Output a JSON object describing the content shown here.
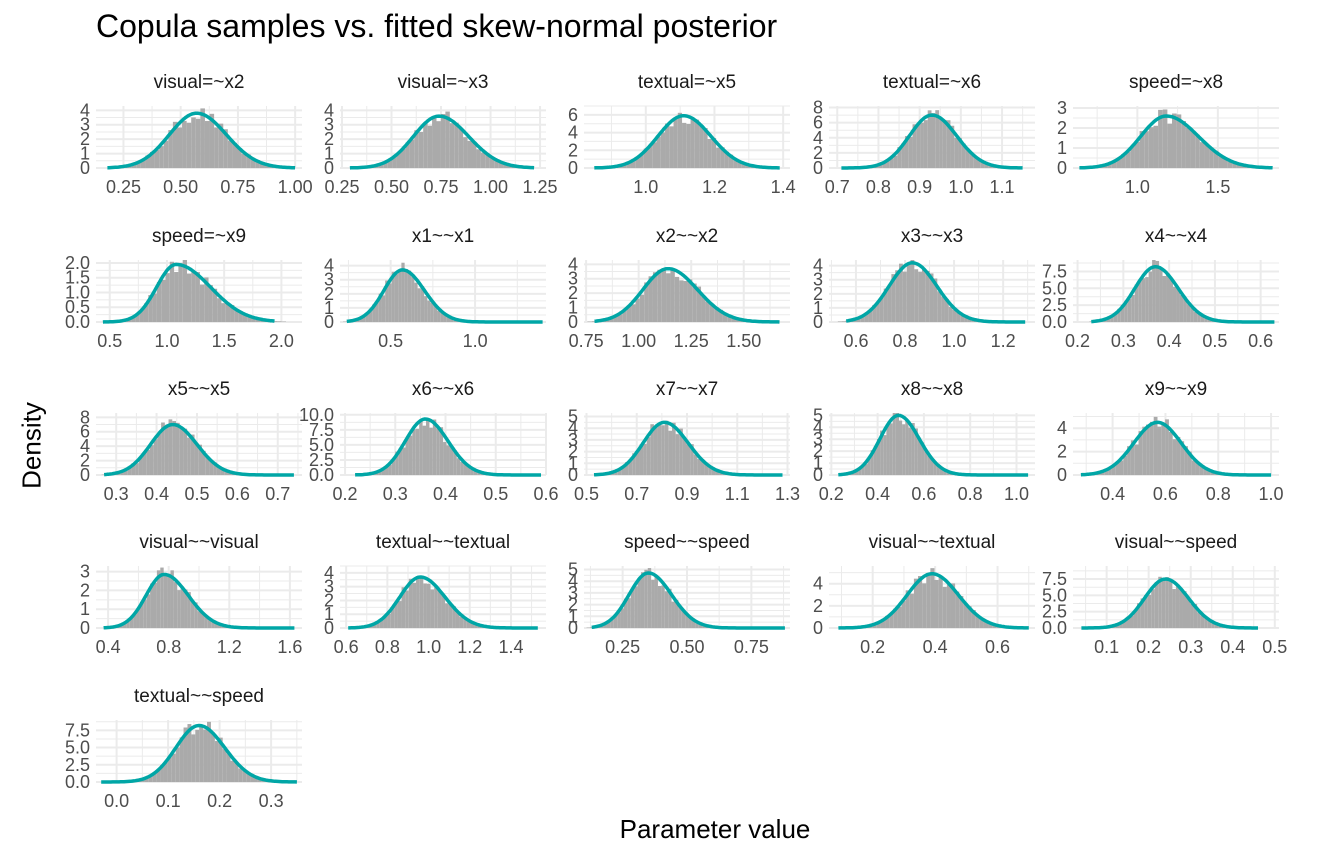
{
  "chart_data": {
    "type": "faceted-histogram-density",
    "title": "Copula samples vs. fitted skew-normal posterior",
    "xlabel": "Parameter value",
    "ylabel": "Density",
    "grid": true,
    "colors": {
      "histogram": "#aaaaaa",
      "curve": "#00a6a6",
      "grid": "#ebebeb",
      "tick_label": "#4d4d4d",
      "strip_text": "#1a1a1a"
    },
    "panels": [
      {
        "title": "visual=~x2",
        "xlim": [
          0.13,
          1.03
        ],
        "xticks": [
          0.25,
          0.5,
          0.75,
          1.0
        ],
        "xtick_labels": [
          "0.25",
          "0.50",
          "0.75",
          "1.00"
        ],
        "ymax": 4.3,
        "yticks": [
          0,
          1,
          2,
          3,
          4
        ],
        "ytick_labels": [
          "0",
          "1",
          "2",
          "3",
          "4"
        ],
        "mode": 0.57,
        "scale_left": 0.12,
        "scale_right": 0.13,
        "peak": 3.8,
        "support": [
          0.18,
          1.0
        ]
      },
      {
        "title": "visual=~x3",
        "xlim": [
          0.24,
          1.28
        ],
        "xticks": [
          0.25,
          0.5,
          0.75,
          1.0,
          1.25
        ],
        "xtick_labels": [
          "0.25",
          "0.50",
          "0.75",
          "1.00",
          "1.25"
        ],
        "ymax": 4.3,
        "yticks": [
          0,
          1,
          2,
          3,
          4
        ],
        "ytick_labels": [
          "0",
          "1",
          "2",
          "3",
          "4"
        ],
        "mode": 0.74,
        "scale_left": 0.13,
        "scale_right": 0.15,
        "peak": 3.6,
        "support": [
          0.29,
          1.22
        ]
      },
      {
        "title": "textual=~x5",
        "xlim": [
          0.82,
          1.42
        ],
        "xticks": [
          1.0,
          1.2,
          1.4
        ],
        "xtick_labels": [
          "1.0",
          "1.2",
          "1.4"
        ],
        "ymax": 7.0,
        "yticks": [
          0,
          2,
          4,
          6
        ],
        "ytick_labels": [
          "0",
          "2",
          "4",
          "6"
        ],
        "mode": 1.11,
        "scale_left": 0.075,
        "scale_right": 0.08,
        "peak": 5.9,
        "support": [
          0.85,
          1.39
        ]
      },
      {
        "title": "textual=~x6",
        "xlim": [
          0.68,
          1.18
        ],
        "xticks": [
          0.7,
          0.8,
          0.9,
          1.0,
          1.1
        ],
        "xtick_labels": [
          "0.7",
          "0.8",
          "0.9",
          "1.0",
          "1.1"
        ],
        "ymax": 8.2,
        "yticks": [
          0,
          2,
          4,
          6,
          8
        ],
        "ytick_labels": [
          "0",
          "2",
          "4",
          "6",
          "8"
        ],
        "mode": 0.93,
        "scale_left": 0.055,
        "scale_right": 0.06,
        "peak": 7.0,
        "support": [
          0.71,
          1.15
        ]
      },
      {
        "title": "speed=~x8",
        "xlim": [
          0.6,
          1.88
        ],
        "xticks": [
          1.0,
          1.5
        ],
        "xtick_labels": [
          "1.0",
          "1.5"
        ],
        "ymax": 3.1,
        "yticks": [
          0,
          1,
          2,
          3
        ],
        "ytick_labels": [
          "0",
          "1",
          "2",
          "3"
        ],
        "mode": 1.18,
        "scale_left": 0.16,
        "scale_right": 0.2,
        "peak": 2.6,
        "support": [
          0.64,
          1.84
        ]
      },
      {
        "title": "speed=~x9",
        "xlim": [
          0.38,
          2.18
        ],
        "xticks": [
          0.5,
          1.0,
          1.5,
          2.0
        ],
        "xtick_labels": [
          "0.5",
          "1.0",
          "1.5",
          "2.0"
        ],
        "ymax": 2.1,
        "yticks": [
          0,
          0.5,
          1.0,
          1.5,
          2.0
        ],
        "ytick_labels": [
          "0.0",
          "0.5",
          "1.0",
          "1.5",
          "2.0"
        ],
        "mode": 1.08,
        "scale_left": 0.17,
        "scale_right": 0.3,
        "peak": 1.95,
        "support": [
          0.44,
          1.94
        ]
      },
      {
        "title": "x1~~x1",
        "xlim": [
          0.2,
          1.42
        ],
        "xticks": [
          0.5,
          1.0
        ],
        "xtick_labels": [
          "0.5",
          "1.0"
        ],
        "ymax": 4.4,
        "yticks": [
          0,
          1,
          2,
          3,
          4
        ],
        "ytick_labels": [
          "0",
          "1",
          "2",
          "3",
          "4"
        ],
        "mode": 0.57,
        "scale_left": 0.11,
        "scale_right": 0.13,
        "peak": 3.7,
        "support": [
          0.24,
          1.4
        ]
      },
      {
        "title": "x2~~x2",
        "xlim": [
          0.74,
          1.72
        ],
        "xticks": [
          0.75,
          1.0,
          1.25,
          1.5
        ],
        "xtick_labels": [
          "0.75",
          "1.00",
          "1.25",
          "1.50"
        ],
        "ymax": 4.3,
        "yticks": [
          0,
          1,
          2,
          3,
          4
        ],
        "ytick_labels": [
          "0",
          "1",
          "2",
          "3",
          "4"
        ],
        "mode": 1.14,
        "scale_left": 0.12,
        "scale_right": 0.14,
        "peak": 3.7,
        "support": [
          0.79,
          1.67
        ]
      },
      {
        "title": "x3~~x3",
        "xlim": [
          0.49,
          1.33
        ],
        "xticks": [
          0.6,
          0.8,
          1.0,
          1.2
        ],
        "xtick_labels": [
          "0.6",
          "0.8",
          "1.0",
          "1.2"
        ],
        "ymax": 4.4,
        "yticks": [
          0,
          1,
          2,
          3,
          4
        ],
        "ytick_labels": [
          "0",
          "1",
          "2",
          "3",
          "4"
        ],
        "mode": 0.83,
        "scale_left": 0.095,
        "scale_right": 0.1,
        "peak": 4.2,
        "support": [
          0.56,
          1.29
        ]
      },
      {
        "title": "x4~~x4",
        "xlim": [
          0.19,
          0.64
        ],
        "xticks": [
          0.2,
          0.3,
          0.4,
          0.5,
          0.6
        ],
        "xtick_labels": [
          "0.2",
          "0.3",
          "0.4",
          "0.5",
          "0.6"
        ],
        "ymax": 9.2,
        "yticks": [
          0,
          2.5,
          5.0,
          7.5
        ],
        "ytick_labels": [
          "0.0",
          "2.5",
          "5.0",
          "7.5"
        ],
        "mode": 0.37,
        "scale_left": 0.045,
        "scale_right": 0.05,
        "peak": 8.2,
        "support": [
          0.23,
          0.63
        ]
      },
      {
        "title": "x5~~x5",
        "xlim": [
          0.25,
          0.76
        ],
        "xticks": [
          0.3,
          0.4,
          0.5,
          0.6,
          0.7
        ],
        "xtick_labels": [
          "0.3",
          "0.4",
          "0.5",
          "0.6",
          "0.7"
        ],
        "ymax": 8.6,
        "yticks": [
          0,
          2,
          4,
          6,
          8
        ],
        "ytick_labels": [
          "0",
          "2",
          "4",
          "6",
          "8"
        ],
        "mode": 0.44,
        "scale_left": 0.055,
        "scale_right": 0.06,
        "peak": 7.0,
        "support": [
          0.27,
          0.74
        ]
      },
      {
        "title": "x6~~x6",
        "xlim": [
          0.19,
          0.6
        ],
        "xticks": [
          0.2,
          0.3,
          0.4,
          0.5,
          0.6
        ],
        "xtick_labels": [
          "0.2",
          "0.3",
          "0.4",
          "0.5",
          "0.6"
        ],
        "ymax": 10.3,
        "yticks": [
          0,
          2.5,
          5.0,
          7.5,
          10.0
        ],
        "ytick_labels": [
          "0.0",
          "2.5",
          "5.0",
          "7.5",
          "10.0"
        ],
        "mode": 0.36,
        "scale_left": 0.04,
        "scale_right": 0.045,
        "peak": 9.3,
        "support": [
          0.22,
          0.59
        ]
      },
      {
        "title": "x7~~x7",
        "xlim": [
          0.49,
          1.31
        ],
        "xticks": [
          0.5,
          0.7,
          0.9,
          1.1,
          1.3
        ],
        "xtick_labels": [
          "0.5",
          "0.7",
          "0.9",
          "1.1",
          "1.3"
        ],
        "ymax": 5.3,
        "yticks": [
          0,
          1,
          2,
          3,
          4,
          5
        ],
        "ytick_labels": [
          "0",
          "1",
          "2",
          "3",
          "4",
          "5"
        ],
        "mode": 0.81,
        "scale_left": 0.085,
        "scale_right": 0.095,
        "peak": 4.5,
        "support": [
          0.53,
          1.28
        ]
      },
      {
        "title": "x8~~x8",
        "xlim": [
          0.19,
          1.08
        ],
        "xticks": [
          0.2,
          0.4,
          0.6,
          0.8,
          1.0
        ],
        "xtick_labels": [
          "0.2",
          "0.4",
          "0.6",
          "0.8",
          "1.0"
        ],
        "ymax": 5.2,
        "yticks": [
          0,
          1,
          2,
          3,
          4,
          5
        ],
        "ytick_labels": [
          "0",
          "1",
          "2",
          "3",
          "4",
          "5"
        ],
        "mode": 0.49,
        "scale_left": 0.08,
        "scale_right": 0.09,
        "peak": 5.0,
        "support": [
          0.23,
          1.05
        ]
      },
      {
        "title": "x9~~x9",
        "xlim": [
          0.25,
          1.03
        ],
        "xticks": [
          0.4,
          0.6,
          0.8,
          1.0
        ],
        "xtick_labels": [
          "0.4",
          "0.6",
          "0.8",
          "1.0"
        ],
        "ymax": 5.3,
        "yticks": [
          0,
          2,
          4
        ],
        "ytick_labels": [
          "0",
          "2",
          "4"
        ],
        "mode": 0.57,
        "scale_left": 0.09,
        "scale_right": 0.09,
        "peak": 4.5,
        "support": [
          0.28,
          1.0
        ]
      },
      {
        "title": "visual~~visual",
        "xlim": [
          0.32,
          1.68
        ],
        "xticks": [
          0.4,
          0.8,
          1.2,
          1.6
        ],
        "xtick_labels": [
          "0.4",
          "0.8",
          "1.2",
          "1.6"
        ],
        "ymax": 3.3,
        "yticks": [
          0,
          1,
          2,
          3
        ],
        "ytick_labels": [
          "0",
          "1",
          "2",
          "3"
        ],
        "mode": 0.77,
        "scale_left": 0.12,
        "scale_right": 0.16,
        "peak": 2.85,
        "support": [
          0.37,
          1.63
        ]
      },
      {
        "title": "textual~~textual",
        "xlim": [
          0.57,
          1.57
        ],
        "xticks": [
          0.6,
          0.8,
          1.0,
          1.2,
          1.4
        ],
        "xtick_labels": [
          "0.6",
          "0.8",
          "1.0",
          "1.2",
          "1.4"
        ],
        "ymax": 4.5,
        "yticks": [
          0,
          1,
          2,
          3,
          4
        ],
        "ytick_labels": [
          "0",
          "1",
          "2",
          "3",
          "4"
        ],
        "mode": 0.96,
        "scale_left": 0.1,
        "scale_right": 0.12,
        "peak": 3.7,
        "support": [
          0.61,
          1.53
        ]
      },
      {
        "title": "speed~~speed",
        "xlim": [
          0.1,
          0.9
        ],
        "xticks": [
          0.25,
          0.5,
          0.75
        ],
        "xtick_labels": [
          "0.25",
          "0.50",
          "0.75"
        ],
        "ymax": 5.3,
        "yticks": [
          0,
          1,
          2,
          3,
          4,
          5
        ],
        "ytick_labels": [
          "0",
          "1",
          "2",
          "3",
          "4",
          "5"
        ],
        "mode": 0.35,
        "scale_left": 0.075,
        "scale_right": 0.09,
        "peak": 4.7,
        "support": [
          0.13,
          0.88
        ]
      },
      {
        "title": "visual~~textual",
        "xlim": [
          0.06,
          0.72
        ],
        "xticks": [
          0.2,
          0.4,
          0.6
        ],
        "xtick_labels": [
          "0.2",
          "0.4",
          "0.6"
        ],
        "ymax": 5.6,
        "yticks": [
          0,
          2,
          4
        ],
        "ytick_labels": [
          "0",
          "2",
          "4"
        ],
        "mode": 0.39,
        "scale_left": 0.08,
        "scale_right": 0.085,
        "peak": 4.9,
        "support": [
          0.09,
          0.7
        ]
      },
      {
        "title": "visual~~speed",
        "xlim": [
          0.02,
          0.51
        ],
        "xticks": [
          0.1,
          0.2,
          0.3,
          0.4,
          0.5
        ],
        "xtick_labels": [
          "0.1",
          "0.2",
          "0.3",
          "0.4",
          "0.5"
        ],
        "ymax": 9.5,
        "yticks": [
          0,
          2.5,
          5.0,
          7.5
        ],
        "ytick_labels": [
          "0.0",
          "2.5",
          "5.0",
          "7.5"
        ],
        "mode": 0.24,
        "scale_left": 0.05,
        "scale_right": 0.055,
        "peak": 7.5,
        "support": [
          0.04,
          0.46
        ]
      },
      {
        "title": "textual~~speed",
        "xlim": [
          -0.04,
          0.36
        ],
        "xticks": [
          0.0,
          0.1,
          0.2,
          0.3
        ],
        "xtick_labels": [
          "0.0",
          "0.1",
          "0.2",
          "0.3"
        ],
        "ymax": 9.0,
        "yticks": [
          0,
          2.5,
          5.0,
          7.5
        ],
        "ytick_labels": [
          "0.0",
          "2.5",
          "5.0",
          "7.5"
        ],
        "mode": 0.16,
        "scale_left": 0.045,
        "scale_right": 0.05,
        "peak": 8.2,
        "support": [
          -0.03,
          0.35
        ]
      }
    ]
  }
}
